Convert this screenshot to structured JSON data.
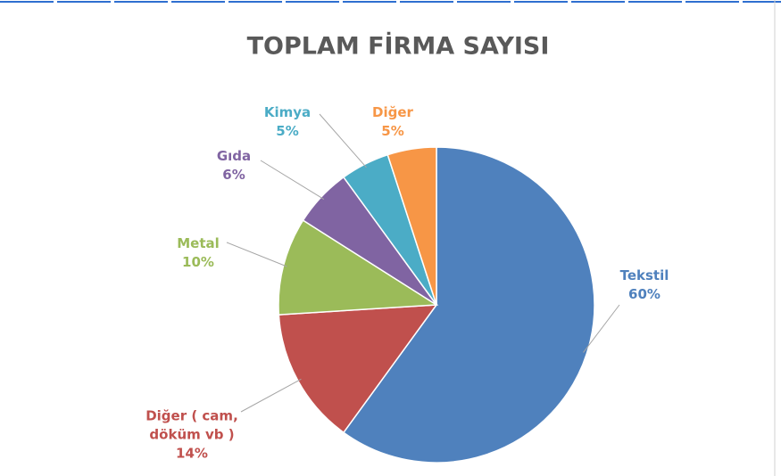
{
  "chart_data": {
    "type": "pie",
    "title": "TOPLAM FİRMA SAYISI",
    "categories": [
      "Tekstil",
      "Diğer ( cam, döküm vb )",
      "Metal",
      "Gıda",
      "Kimya",
      "Diğer"
    ],
    "values": [
      60,
      14,
      10,
      6,
      5,
      5
    ],
    "value_labels": [
      "60%",
      "14%",
      "10%",
      "6%",
      "5%",
      "5%"
    ],
    "colors": [
      "#4f81bd",
      "#c0504d",
      "#9bbb59",
      "#8064a2",
      "#4bacc6",
      "#f79646"
    ]
  }
}
